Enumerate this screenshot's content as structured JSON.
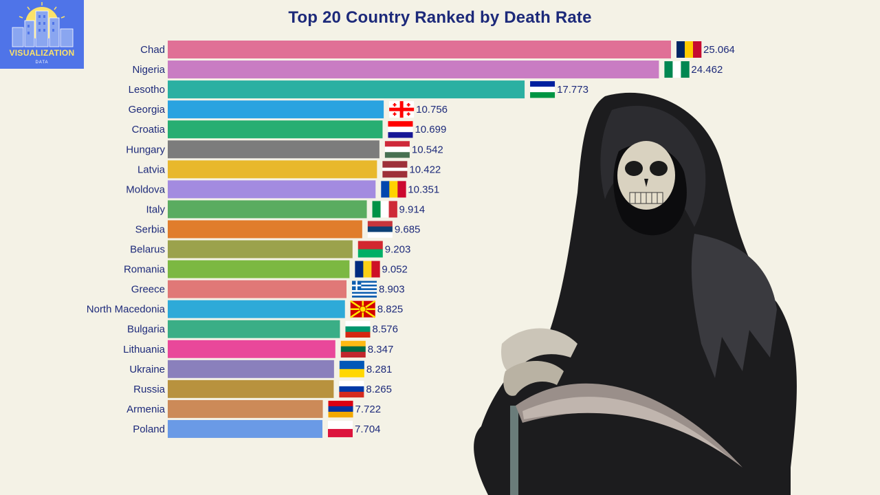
{
  "logo": {
    "text": "VISUALIZATION",
    "subtext": "DATA",
    "colors": {
      "background": "#4f74e8",
      "sun": "#fbe26a",
      "buildings": "#8aa6f0"
    }
  },
  "chart_data": {
    "type": "bar",
    "orientation": "horizontal",
    "title": "Top 20 Country Ranked by Death Rate",
    "xlim": [
      0,
      26
    ],
    "grid": false,
    "legend": "none",
    "categories": [
      "Chad",
      "Nigeria",
      "Lesotho",
      "Georgia",
      "Croatia",
      "Hungary",
      "Latvia",
      "Moldova",
      "Italy",
      "Serbia",
      "Belarus",
      "Romania",
      "Greece",
      "North Macedonia",
      "Bulgaria",
      "Lithuania",
      "Ukraine",
      "Russia",
      "Armenia",
      "Poland"
    ],
    "values": [
      25.064,
      24.462,
      17.773,
      10.756,
      10.699,
      10.542,
      10.422,
      10.351,
      9.914,
      9.685,
      9.203,
      9.052,
      8.903,
      8.825,
      8.576,
      8.347,
      8.281,
      8.265,
      7.722,
      7.704
    ],
    "value_labels": [
      "25.064",
      "24.462",
      "17.773",
      "10.756",
      "10.699",
      "10.542",
      "10.422",
      "10.351",
      "9.914",
      "9.685",
      "9.203",
      "9.052",
      "8.903",
      "8.825",
      "8.576",
      "8.347",
      "8.281",
      "8.265",
      "7.722",
      "7.704"
    ],
    "bar_colors": [
      "#e07096",
      "#c97cc3",
      "#2bb0a2",
      "#2aa3e0",
      "#27ae72",
      "#7c7c7c",
      "#e8b82c",
      "#a38be0",
      "#5aac60",
      "#e07d2c",
      "#9ba24c",
      "#7cb842",
      "#e07877",
      "#2eaad8",
      "#3aae86",
      "#e9489a",
      "#8a80bc",
      "#b8923e",
      "#cc8a58",
      "#6a9ae6"
    ],
    "flags": [
      {
        "kind": "v3",
        "colors": [
          "#002664",
          "#fecb00",
          "#c60c30"
        ]
      },
      {
        "kind": "v3",
        "colors": [
          "#008751",
          "#ffffff",
          "#008751"
        ]
      },
      {
        "kind": "h3",
        "colors": [
          "#00209f",
          "#ffffff",
          "#009543"
        ]
      },
      {
        "kind": "georgia",
        "colors": [
          "#ffffff",
          "#ff0000"
        ]
      },
      {
        "kind": "h3",
        "colors": [
          "#ff0000",
          "#ffffff",
          "#171796"
        ]
      },
      {
        "kind": "h3",
        "colors": [
          "#ce2939",
          "#ffffff",
          "#477050"
        ]
      },
      {
        "kind": "h3w",
        "colors": [
          "#9e3039",
          "#ffffff",
          "#9e3039"
        ]
      },
      {
        "kind": "v3",
        "colors": [
          "#0046ae",
          "#ffd200",
          "#cc092f"
        ]
      },
      {
        "kind": "v3",
        "colors": [
          "#009246",
          "#ffffff",
          "#ce2b37"
        ]
      },
      {
        "kind": "h3",
        "colors": [
          "#c6363c",
          "#0c4076",
          "#ffffff"
        ]
      },
      {
        "kind": "h2",
        "colors": [
          "#d22730",
          "#00af66"
        ]
      },
      {
        "kind": "v3",
        "colors": [
          "#002b7f",
          "#fcd116",
          "#ce1126"
        ]
      },
      {
        "kind": "greece",
        "colors": [
          "#0d5eaf",
          "#ffffff"
        ]
      },
      {
        "kind": "macedonia",
        "colors": [
          "#d20000",
          "#ffe600"
        ]
      },
      {
        "kind": "h3",
        "colors": [
          "#ffffff",
          "#00966e",
          "#d62612"
        ]
      },
      {
        "kind": "h3",
        "colors": [
          "#fdb913",
          "#006a44",
          "#c1272d"
        ]
      },
      {
        "kind": "h2",
        "colors": [
          "#0057b7",
          "#ffd700"
        ]
      },
      {
        "kind": "h3",
        "colors": [
          "#ffffff",
          "#0039a6",
          "#d52b1e"
        ]
      },
      {
        "kind": "h3",
        "colors": [
          "#d90012",
          "#0033a0",
          "#f2a800"
        ]
      },
      {
        "kind": "h2",
        "colors": [
          "#ffffff",
          "#dc143c"
        ]
      }
    ],
    "colors": {
      "title": "#1d2a7a",
      "labels": "#1d2a7a",
      "background": "#f4f2e6"
    }
  }
}
